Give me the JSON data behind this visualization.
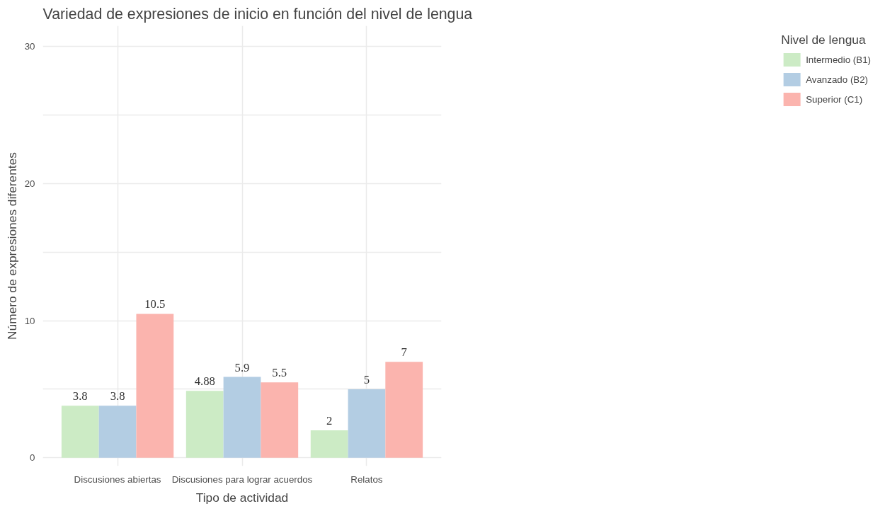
{
  "chart_data": {
    "type": "bar",
    "title": "Variedad de expresiones de inicio en función del nivel de lengua",
    "xlabel": "Tipo de actividad",
    "ylabel": "Número de expresiones diferentes",
    "legend_title": "Nivel de lengua",
    "categories": [
      "Discusiones abiertas",
      "Discusiones para lograr acuerdos",
      "Relatos"
    ],
    "series": [
      {
        "name": "Intermedio (B1)",
        "color": "#ccebc5",
        "values": [
          3.8,
          4.88,
          2
        ]
      },
      {
        "name": "Avanzado (B2)",
        "color": "#b3cde3",
        "values": [
          3.8,
          5.9,
          5
        ]
      },
      {
        "name": "Superior (C1)",
        "color": "#fbb4ae",
        "values": [
          10.5,
          5.5,
          7
        ]
      }
    ],
    "ylim": [
      -0.6,
      31.5
    ],
    "yticks": [
      0,
      {
        "value": 5,
        "label": null
      },
      10,
      {
        "value": 15,
        "label": null
      },
      20,
      {
        "value": 25,
        "label": null
      },
      30
    ],
    "grid": true,
    "legend": "right",
    "data_labels": true
  }
}
